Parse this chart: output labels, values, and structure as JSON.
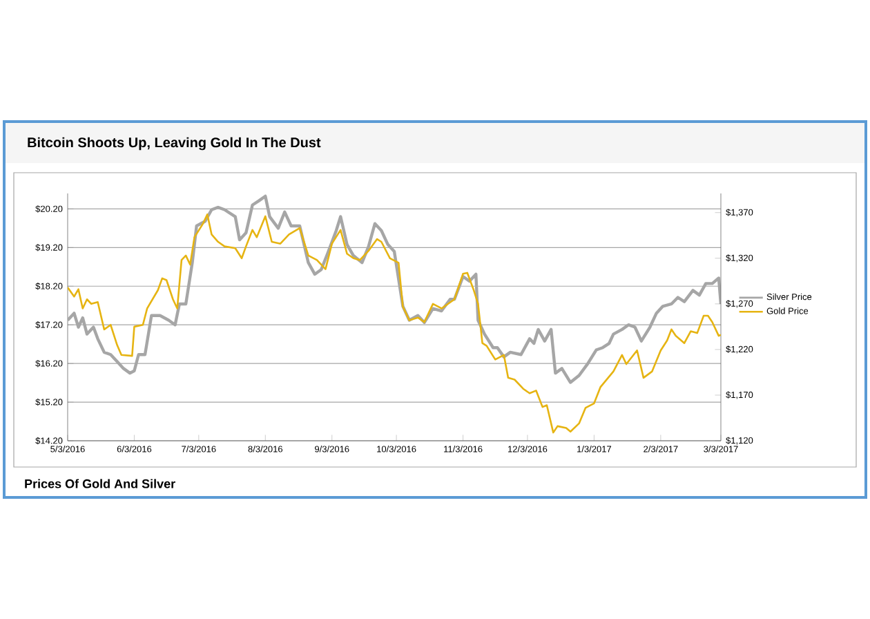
{
  "chart_data": {
    "type": "line",
    "title": "Bitcoin Shoots Up, Leaving Gold In The Dust",
    "annotations": [
      "Prices Of Gold And Silver"
    ],
    "xlim": [
      "2016-05-03",
      "2017-03-03"
    ],
    "xticks": [
      {
        "value": "2016-05-03",
        "label": "5/3/2016"
      },
      {
        "value": "2016-06-03",
        "label": "6/3/2016"
      },
      {
        "value": "2016-07-03",
        "label": "7/3/2016"
      },
      {
        "value": "2016-08-03",
        "label": "8/3/2016"
      },
      {
        "value": "2016-09-03",
        "label": "9/3/2016"
      },
      {
        "value": "2016-10-03",
        "label": "10/3/2016"
      },
      {
        "value": "2016-11-03",
        "label": "11/3/2016"
      },
      {
        "value": "2016-12-03",
        "label": "12/3/2016"
      },
      {
        "value": "2017-01-03",
        "label": "1/3/2017"
      },
      {
        "value": "2017-02-03",
        "label": "2/3/2017"
      },
      {
        "value": "2017-03-03",
        "label": "3/3/2017"
      }
    ],
    "ylim": [
      14.2,
      20.6
    ],
    "yticks": [
      {
        "value": 14.2,
        "label": "$14.20"
      },
      {
        "value": 15.2,
        "label": "$15.20"
      },
      {
        "value": 16.2,
        "label": "$16.20"
      },
      {
        "value": 17.2,
        "label": "$17.20"
      },
      {
        "value": 18.2,
        "label": "$18.20"
      },
      {
        "value": 19.2,
        "label": "$19.20"
      },
      {
        "value": 20.2,
        "label": "$20.20"
      }
    ],
    "y2lim": [
      1120,
      1391
    ],
    "y2ticks": [
      {
        "value": 1120,
        "label": "$1,120"
      },
      {
        "value": 1170,
        "label": "$1,170"
      },
      {
        "value": 1220,
        "label": "$1,220"
      },
      {
        "value": 1270,
        "label": "$1,270"
      },
      {
        "value": 1320,
        "label": "$1,320"
      },
      {
        "value": 1370,
        "label": "$1,370"
      }
    ],
    "grid": "y",
    "legend": "right",
    "series": [
      {
        "name": "Silver Price",
        "color": "#a6a6a6",
        "x": [
          "2016-05-03",
          "2016-05-06",
          "2016-05-08",
          "2016-05-10",
          "2016-05-12",
          "2016-05-15",
          "2016-05-17",
          "2016-05-20",
          "2016-05-23",
          "2016-05-26",
          "2016-05-29",
          "2016-06-01",
          "2016-06-03",
          "2016-06-05",
          "2016-06-08",
          "2016-06-11",
          "2016-06-15",
          "2016-06-19",
          "2016-06-22",
          "2016-06-24",
          "2016-06-27",
          "2016-06-30",
          "2016-07-02",
          "2016-07-06",
          "2016-07-09",
          "2016-07-12",
          "2016-07-15",
          "2016-07-20",
          "2016-07-22",
          "2016-07-25",
          "2016-07-28",
          "2016-07-31",
          "2016-08-03",
          "2016-08-05",
          "2016-08-09",
          "2016-08-12",
          "2016-08-15",
          "2016-08-19",
          "2016-08-23",
          "2016-08-26",
          "2016-08-29",
          "2016-09-01",
          "2016-09-05",
          "2016-09-07",
          "2016-09-10",
          "2016-09-13",
          "2016-09-17",
          "2016-09-20",
          "2016-09-23",
          "2016-09-26",
          "2016-09-29",
          "2016-10-02",
          "2016-10-06",
          "2016-10-09",
          "2016-10-13",
          "2016-10-16",
          "2016-10-20",
          "2016-10-24",
          "2016-10-28",
          "2016-10-30",
          "2016-11-03",
          "2016-11-06",
          "2016-11-09",
          "2016-11-10",
          "2016-11-13",
          "2016-11-17",
          "2016-11-19",
          "2016-11-22",
          "2016-11-25",
          "2016-11-30",
          "2016-12-04",
          "2016-12-06",
          "2016-12-08",
          "2016-12-11",
          "2016-12-14",
          "2016-12-16",
          "2016-12-19",
          "2016-12-23",
          "2016-12-27",
          "2016-12-31",
          "2017-01-04",
          "2017-01-07",
          "2017-01-10",
          "2017-01-12",
          "2017-01-16",
          "2017-01-19",
          "2017-01-22",
          "2017-01-25",
          "2017-01-29",
          "2017-02-01",
          "2017-02-04",
          "2017-02-08",
          "2017-02-11",
          "2017-02-14",
          "2017-02-18",
          "2017-02-21",
          "2017-02-24",
          "2017-02-27",
          "2017-03-02",
          "2017-03-03"
        ],
        "values": [
          17.32,
          17.5,
          17.14,
          17.38,
          16.96,
          17.14,
          16.84,
          16.49,
          16.43,
          16.25,
          16.07,
          15.95,
          16.01,
          16.43,
          16.43,
          17.44,
          17.44,
          17.32,
          17.2,
          17.74,
          17.74,
          18.81,
          19.76,
          19.88,
          20.18,
          20.24,
          20.18,
          20.0,
          19.4,
          19.58,
          20.3,
          20.41,
          20.53,
          20.0,
          19.7,
          20.12,
          19.76,
          19.76,
          18.81,
          18.51,
          18.63,
          19.05,
          19.64,
          20.0,
          19.28,
          18.99,
          18.81,
          19.22,
          19.82,
          19.64,
          19.28,
          19.1,
          17.68,
          17.32,
          17.44,
          17.26,
          17.62,
          17.56,
          17.86,
          17.86,
          18.45,
          18.33,
          18.51,
          17.32,
          16.96,
          16.61,
          16.61,
          16.37,
          16.49,
          16.43,
          16.84,
          16.72,
          17.08,
          16.78,
          17.08,
          15.95,
          16.07,
          15.71,
          15.89,
          16.19,
          16.55,
          16.61,
          16.72,
          16.96,
          17.08,
          17.2,
          17.14,
          16.78,
          17.14,
          17.5,
          17.68,
          17.74,
          17.91,
          17.8,
          18.09,
          17.97,
          18.27,
          18.27,
          18.41,
          17.74
        ]
      },
      {
        "name": "Gold Price",
        "color": "#e6b412",
        "axis": "y2",
        "x": [
          "2016-05-03",
          "2016-05-06",
          "2016-05-08",
          "2016-05-10",
          "2016-05-12",
          "2016-05-14",
          "2016-05-17",
          "2016-05-20",
          "2016-05-23",
          "2016-05-26",
          "2016-05-28",
          "2016-06-02",
          "2016-06-03",
          "2016-06-07",
          "2016-06-09",
          "2016-06-14",
          "2016-06-16",
          "2016-06-18",
          "2016-06-21",
          "2016-06-23",
          "2016-06-25",
          "2016-06-27",
          "2016-06-29",
          "2016-07-01",
          "2016-07-05",
          "2016-07-07",
          "2016-07-09",
          "2016-07-12",
          "2016-07-15",
          "2016-07-20",
          "2016-07-23",
          "2016-07-25",
          "2016-07-28",
          "2016-07-30",
          "2016-08-03",
          "2016-08-06",
          "2016-08-10",
          "2016-08-14",
          "2016-08-19",
          "2016-08-23",
          "2016-08-27",
          "2016-08-31",
          "2016-09-03",
          "2016-09-07",
          "2016-09-10",
          "2016-09-13",
          "2016-09-16",
          "2016-09-20",
          "2016-09-24",
          "2016-09-26",
          "2016-09-30",
          "2016-10-04",
          "2016-10-06",
          "2016-10-09",
          "2016-10-13",
          "2016-10-16",
          "2016-10-20",
          "2016-10-24",
          "2016-10-30",
          "2016-11-03",
          "2016-11-05",
          "2016-11-08",
          "2016-11-10",
          "2016-11-12",
          "2016-11-14",
          "2016-11-18",
          "2016-11-22",
          "2016-11-24",
          "2016-11-27",
          "2016-12-01",
          "2016-12-04",
          "2016-12-07",
          "2016-12-10",
          "2016-12-12",
          "2016-12-15",
          "2016-12-17",
          "2016-12-21",
          "2016-12-23",
          "2016-12-27",
          "2016-12-30",
          "2017-01-03",
          "2017-01-06",
          "2017-01-12",
          "2017-01-16",
          "2017-01-18",
          "2017-01-23",
          "2017-01-26",
          "2017-01-30",
          "2017-02-03",
          "2017-02-06",
          "2017-02-08",
          "2017-02-10",
          "2017-02-14",
          "2017-02-17",
          "2017-02-20",
          "2017-02-23",
          "2017-02-25",
          "2017-02-27",
          "2017-03-02",
          "2017-03-03"
        ],
        "values": [
          1288,
          1278,
          1286,
          1265,
          1275,
          1270,
          1272,
          1242,
          1247,
          1225,
          1214,
          1213,
          1245,
          1247,
          1265,
          1285,
          1298,
          1296,
          1275,
          1265,
          1318,
          1323,
          1313,
          1343,
          1358,
          1368,
          1346,
          1338,
          1333,
          1331,
          1320,
          1333,
          1351,
          1343,
          1366,
          1338,
          1336,
          1346,
          1353,
          1323,
          1318,
          1308,
          1336,
          1351,
          1325,
          1320,
          1318,
          1328,
          1341,
          1338,
          1320,
          1315,
          1267,
          1252,
          1255,
          1250,
          1270,
          1265,
          1275,
          1303,
          1304,
          1285,
          1270,
          1227,
          1224,
          1209,
          1214,
          1189,
          1187,
          1177,
          1172,
          1175,
          1157,
          1159,
          1129,
          1136,
          1134,
          1130,
          1139,
          1156,
          1161,
          1179,
          1196,
          1214,
          1204,
          1219,
          1189,
          1196,
          1219,
          1230,
          1242,
          1235,
          1227,
          1240,
          1238,
          1257,
          1257,
          1250,
          1235,
          1236
        ]
      }
    ]
  }
}
